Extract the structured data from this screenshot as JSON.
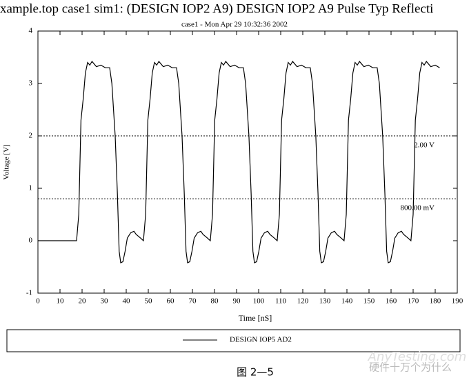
{
  "chart_data": {
    "type": "line",
    "title": "xample.top case1 sim1: (DESIGN IOP2 A9) DESIGN IOP2 A9 Pulse Typ Reflecti",
    "subtitle": "case1 - Mon Apr 29 10:32:36 2002",
    "x_label": "Time [nS]",
    "y_label": "Voltage [V]",
    "xlim": [
      0,
      190
    ],
    "ylim": [
      -1,
      4
    ],
    "xticks": [
      0,
      10,
      20,
      30,
      40,
      50,
      60,
      70,
      80,
      90,
      100,
      110,
      120,
      130,
      140,
      150,
      160,
      170,
      180,
      190
    ],
    "yticks": [
      -1,
      0,
      1,
      2,
      3,
      4
    ],
    "reference_lines": [
      {
        "value": 2,
        "label": "2.00 V"
      },
      {
        "value": 0.8,
        "label": "800.00 mV"
      }
    ],
    "legend_position": "bottom",
    "series": [
      {
        "name": "DESIGN IOP5 AD2",
        "color": "#000000",
        "x": [
          0,
          17.5,
          18.5,
          19.5,
          20.5,
          21.5,
          22.5,
          23.5,
          24.5,
          26.5,
          28.5,
          30.5,
          32.5,
          33.5,
          35,
          36,
          36.8,
          37.5,
          38.5,
          39.5,
          40.5,
          42,
          43.5,
          44.5,
          46.5,
          47.8,
          48.8,
          49.8,
          50.8,
          51.8,
          52.8,
          53.8,
          54.8,
          56.8,
          58.8,
          60.8,
          62.8,
          63.8,
          65.3,
          66.3,
          67.1,
          67.8,
          68.8,
          69.8,
          70.8,
          72.3,
          73.8,
          74.8,
          76.8,
          78.1,
          79.1,
          80.1,
          81.1,
          82.1,
          83.1,
          84.1,
          85.1,
          87.1,
          89.1,
          91.1,
          93.1,
          94.1,
          95.6,
          96.6,
          97.4,
          98.1,
          99.1,
          100.1,
          101.1,
          102.6,
          104.1,
          105.1,
          107.1,
          108.4,
          109.4,
          110.4,
          111.4,
          112.4,
          113.4,
          114.4,
          115.4,
          117.4,
          119.4,
          121.4,
          123.4,
          124.4,
          125.9,
          126.9,
          127.7,
          128.4,
          129.4,
          130.4,
          131.4,
          132.9,
          134.4,
          135.4,
          137.4,
          138.7,
          139.7,
          140.7,
          141.7,
          142.7,
          143.7,
          144.7,
          145.7,
          147.7,
          149.7,
          151.7,
          153.7,
          154.7,
          156.2,
          157.2,
          158,
          158.7,
          159.7,
          160.7,
          161.7,
          163.2,
          164.7,
          165.7,
          167.7,
          169,
          170,
          171,
          172,
          173,
          174,
          175,
          176,
          178,
          180,
          182
        ],
        "values": [
          0,
          0,
          0.5,
          2.3,
          2.7,
          3.2,
          3.4,
          3.35,
          3.42,
          3.32,
          3.35,
          3.3,
          3.3,
          3.0,
          2.0,
          0.9,
          -0.2,
          -0.42,
          -0.4,
          -0.2,
          0.05,
          0.15,
          0.18,
          0.12,
          0.05,
          0,
          0.5,
          2.3,
          2.7,
          3.2,
          3.4,
          3.35,
          3.42,
          3.32,
          3.35,
          3.3,
          3.3,
          3.0,
          2.0,
          0.9,
          -0.2,
          -0.42,
          -0.4,
          -0.2,
          0.05,
          0.15,
          0.18,
          0.12,
          0.05,
          0,
          0.5,
          2.3,
          2.7,
          3.2,
          3.4,
          3.35,
          3.42,
          3.32,
          3.35,
          3.3,
          3.3,
          3.0,
          2.0,
          0.9,
          -0.2,
          -0.42,
          -0.4,
          -0.2,
          0.05,
          0.15,
          0.18,
          0.12,
          0.05,
          0,
          0.5,
          2.3,
          2.7,
          3.2,
          3.4,
          3.35,
          3.42,
          3.32,
          3.35,
          3.3,
          3.3,
          3.0,
          2.0,
          0.9,
          -0.2,
          -0.42,
          -0.4,
          -0.2,
          0.05,
          0.15,
          0.18,
          0.12,
          0.05,
          0,
          0.5,
          2.3,
          2.7,
          3.2,
          3.4,
          3.35,
          3.42,
          3.32,
          3.35,
          3.3,
          3.3,
          3.0,
          2.0,
          0.9,
          -0.2,
          -0.42,
          -0.4,
          -0.2,
          0.05,
          0.15,
          0.18,
          0.12,
          0.05,
          0,
          0.5,
          2.3,
          2.7,
          3.2,
          3.4,
          3.35,
          3.42,
          3.32,
          3.35,
          3.3
        ]
      }
    ]
  },
  "caption": "图 2—5",
  "watermark": {
    "title": "硬件十万个为什么",
    "site": "AnyTesting.com"
  }
}
